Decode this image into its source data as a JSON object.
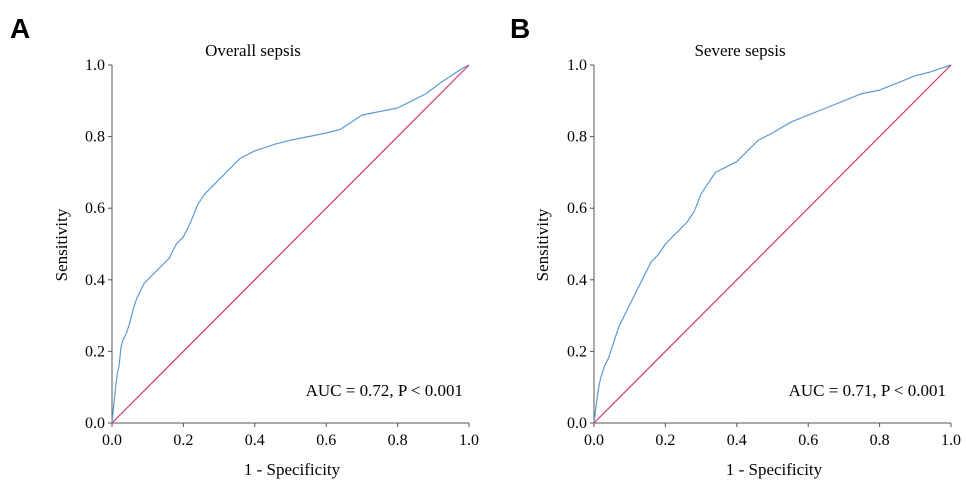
{
  "chart_data": [
    {
      "panel": "A",
      "type": "line",
      "title": "Overall sepsis",
      "xlabel": "1 - Specificity",
      "ylabel": "Sensitivity",
      "annotation": "AUC = 0.72, P < 0.001",
      "xlim": [
        0.0,
        1.0
      ],
      "ylim": [
        0.0,
        1.0
      ],
      "xticks": [
        "0.0",
        "0.2",
        "0.4",
        "0.6",
        "0.8",
        "1.0"
      ],
      "yticks": [
        "0.0",
        "0.2",
        "0.4",
        "0.6",
        "0.8",
        "1.0"
      ],
      "grid": false,
      "series": [
        {
          "color": "#5b9bd5",
          "x": [
            0.0,
            0.005,
            0.01,
            0.015,
            0.02,
            0.025,
            0.03,
            0.04,
            0.05,
            0.06,
            0.07,
            0.08,
            0.09,
            0.1,
            0.12,
            0.14,
            0.16,
            0.18,
            0.2,
            0.22,
            0.24,
            0.26,
            0.28,
            0.3,
            0.32,
            0.34,
            0.36,
            0.38,
            0.4,
            0.43,
            0.46,
            0.5,
            0.55,
            0.6,
            0.64,
            0.67,
            0.7,
            0.75,
            0.8,
            0.84,
            0.88,
            0.92,
            0.95,
            0.98,
            1.0
          ],
          "y": [
            0.0,
            0.05,
            0.1,
            0.14,
            0.16,
            0.21,
            0.23,
            0.25,
            0.28,
            0.32,
            0.35,
            0.37,
            0.39,
            0.4,
            0.42,
            0.44,
            0.46,
            0.5,
            0.52,
            0.56,
            0.61,
            0.64,
            0.66,
            0.68,
            0.7,
            0.72,
            0.74,
            0.75,
            0.76,
            0.77,
            0.78,
            0.79,
            0.8,
            0.81,
            0.82,
            0.84,
            0.86,
            0.87,
            0.88,
            0.9,
            0.92,
            0.95,
            0.97,
            0.99,
            1.0
          ]
        },
        {
          "color": "#d6336c",
          "x": [
            0.0,
            1.0
          ],
          "y": [
            0.0,
            1.0
          ]
        }
      ]
    },
    {
      "panel": "B",
      "type": "line",
      "title": "Severe sepsis",
      "xlabel": "1 - Specificity",
      "ylabel": "Sensitivity",
      "annotation": "AUC = 0.71, P < 0.001",
      "xlim": [
        0.0,
        1.0
      ],
      "ylim": [
        0.0,
        1.0
      ],
      "xticks": [
        "0.0",
        "0.2",
        "0.4",
        "0.6",
        "0.8",
        "1.0"
      ],
      "yticks": [
        "0.0",
        "0.2",
        "0.4",
        "0.6",
        "0.8",
        "1.0"
      ],
      "grid": false,
      "series": [
        {
          "color": "#5b9bd5",
          "x": [
            0.0,
            0.005,
            0.01,
            0.015,
            0.02,
            0.03,
            0.04,
            0.05,
            0.06,
            0.07,
            0.08,
            0.09,
            0.1,
            0.12,
            0.14,
            0.16,
            0.18,
            0.2,
            0.22,
            0.24,
            0.26,
            0.28,
            0.3,
            0.32,
            0.34,
            0.36,
            0.38,
            0.4,
            0.43,
            0.46,
            0.5,
            0.55,
            0.6,
            0.65,
            0.7,
            0.75,
            0.8,
            0.85,
            0.9,
            0.94,
            0.97,
            1.0
          ],
          "y": [
            0.0,
            0.04,
            0.08,
            0.11,
            0.13,
            0.16,
            0.18,
            0.21,
            0.24,
            0.27,
            0.29,
            0.31,
            0.33,
            0.37,
            0.41,
            0.45,
            0.47,
            0.5,
            0.52,
            0.54,
            0.56,
            0.59,
            0.64,
            0.67,
            0.7,
            0.71,
            0.72,
            0.73,
            0.76,
            0.79,
            0.81,
            0.84,
            0.86,
            0.88,
            0.9,
            0.92,
            0.93,
            0.95,
            0.97,
            0.98,
            0.99,
            1.0
          ]
        },
        {
          "color": "#d6336c",
          "x": [
            0.0,
            1.0
          ],
          "y": [
            0.0,
            1.0
          ]
        }
      ]
    }
  ]
}
